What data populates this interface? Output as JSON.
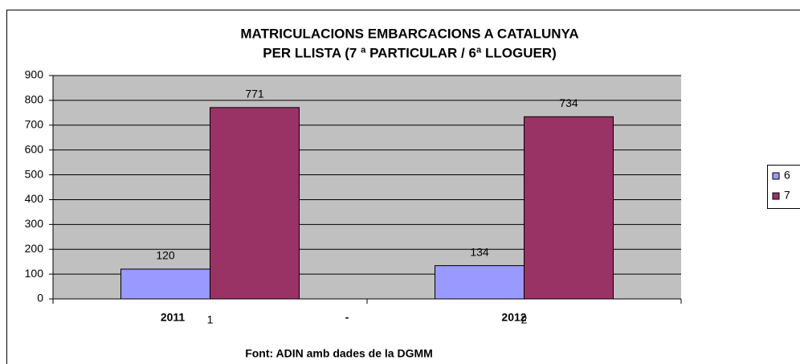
{
  "chart_data": {
    "type": "bar",
    "title": [
      "MATRICULACIONS EMBARCACIONS A CATALUNYA",
      "PER LLISTA (7 ª PARTICULAR / 6ª LLOGUER)"
    ],
    "categories": [
      "1",
      "2"
    ],
    "annotations": [
      "2011",
      "-",
      "2012",
      "Font: ADIN amb dades de la DGMM"
    ],
    "series": [
      {
        "name": "6",
        "color": "#9999ff",
        "values": [
          120,
          134
        ]
      },
      {
        "name": "7",
        "color": "#993366",
        "values": [
          771,
          734
        ]
      }
    ],
    "ylim": [
      0,
      900
    ],
    "yticks": [
      0,
      100,
      200,
      300,
      400,
      500,
      600,
      700,
      800,
      900
    ],
    "grid": true,
    "legend": "right"
  }
}
